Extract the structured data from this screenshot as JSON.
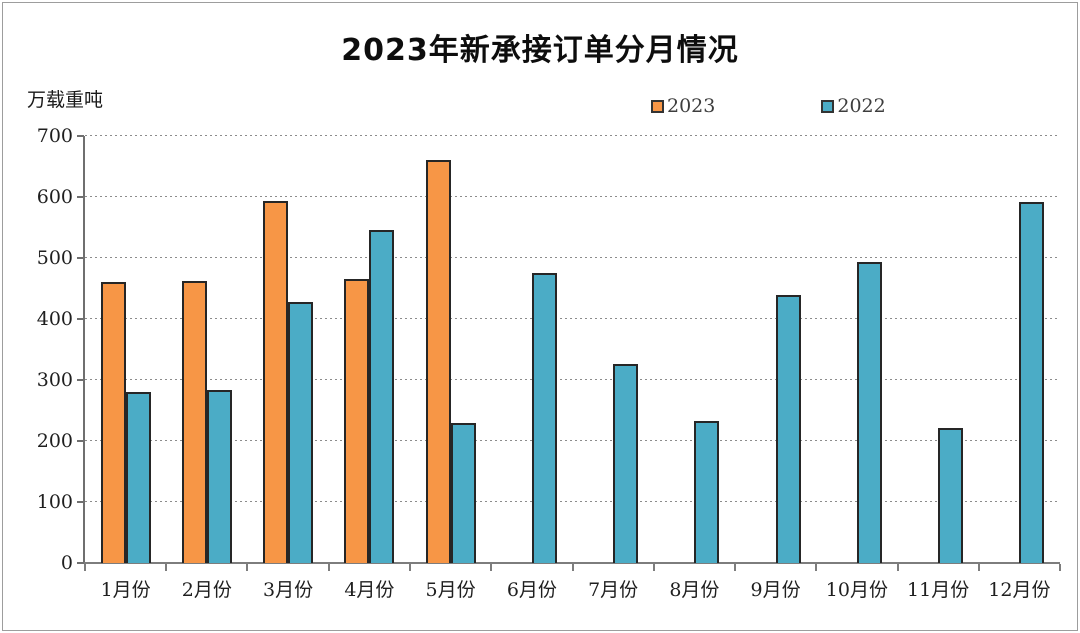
{
  "chart_data": {
    "type": "bar",
    "title": "2023年新承接订单分月情况",
    "unit_label": "万载重吨",
    "categories": [
      "1月份",
      "2月份",
      "3月份",
      "4月份",
      "5月份",
      "6月份",
      "7月份",
      "8月份",
      "9月份",
      "10月份",
      "11月份",
      "12月份"
    ],
    "series": [
      {
        "name": "2023",
        "color": "#F79646",
        "values": [
          460,
          462,
          593,
          466,
          660,
          null,
          null,
          null,
          null,
          null,
          null,
          null
        ]
      },
      {
        "name": "2022",
        "color": "#4BACC6",
        "values": [
          281,
          283,
          428,
          546,
          230,
          476,
          326,
          232,
          440,
          494,
          221,
          592
        ]
      }
    ],
    "ylim": [
      0,
      700
    ],
    "yticks": [
      0,
      100,
      200,
      300,
      400,
      500,
      600,
      700
    ],
    "grid": "horizontal-dotted",
    "legend_position": "top",
    "bar_border_color": "#262626"
  }
}
